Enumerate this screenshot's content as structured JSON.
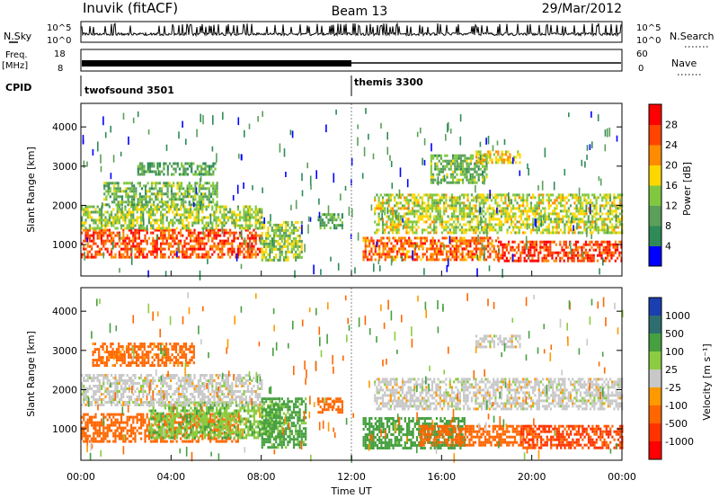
{
  "header": {
    "station": "Inuvik (fitACF)",
    "beam": "Beam 13",
    "date": "29/Mar/2012"
  },
  "status_panels": {
    "nsky_label": "N.Sky",
    "nsearch_label": "N.Search",
    "nsky_ticks": [
      "10^5",
      "10^0"
    ],
    "nsearch_ticks": [
      "10^5",
      "10^0"
    ],
    "freq_label_1": "Freq.",
    "freq_label_2": "[MHz]",
    "freq_ticks": [
      "18",
      "8"
    ],
    "nave_label": "Nave",
    "nave_ticks": [
      "60",
      "0"
    ],
    "cpid_label": "CPID",
    "cpid_segments": [
      {
        "name": "twofsound 3501",
        "start_hour": 0,
        "end_hour": 12
      },
      {
        "name": "themis 3300",
        "start_hour": 12,
        "end_hour": 24
      }
    ]
  },
  "colors": {
    "power_scale": [
      "#0000ff",
      "#2e8b57",
      "#5aa05a",
      "#80c840",
      "#ffd700",
      "#ff8c00",
      "#ff4500",
      "#ff0000"
    ],
    "velocity_scale": [
      "#1a3fb0",
      "#2e6e70",
      "#46a040",
      "#8ccc40",
      "#c8c8c8",
      "#ff9900",
      "#ff6600",
      "#ff3300",
      "#ff0000"
    ]
  },
  "chart_data": [
    {
      "type": "heatmap",
      "panel": "power",
      "xlabel": "",
      "ylabel": "Slant Range [km]",
      "yticks": [
        "1000",
        "2000",
        "3000",
        "4000"
      ],
      "ylim": [
        200,
        4600
      ],
      "xlim_hours": [
        0,
        24
      ],
      "colorbar_label": "Power [dB]",
      "colorbar_ticks": [
        "4",
        "8",
        "12",
        "16",
        "20",
        "24",
        "28"
      ],
      "colorbar_range": [
        0,
        32
      ],
      "echo_bands": [
        {
          "t0": 0,
          "t1": 8.0,
          "r0": 700,
          "r1": 1400,
          "level": 26
        },
        {
          "t0": 0,
          "t1": 8.0,
          "r0": 1400,
          "r1": 2000,
          "level": 14
        },
        {
          "t0": 1,
          "t1": 6.0,
          "r0": 2000,
          "r1": 2600,
          "level": 12
        },
        {
          "t0": 2.5,
          "t1": 6.0,
          "r0": 2800,
          "r1": 3100,
          "level": 10
        },
        {
          "t0": 8.0,
          "t1": 9.8,
          "r0": 600,
          "r1": 1600,
          "level": 14
        },
        {
          "t0": 10.5,
          "t1": 11.6,
          "r0": 1400,
          "r1": 1800,
          "level": 10
        },
        {
          "t0": 12.5,
          "t1": 18.5,
          "r0": 600,
          "r1": 1200,
          "level": 24
        },
        {
          "t0": 13.0,
          "t1": 24.0,
          "r0": 1300,
          "r1": 2300,
          "level": 16
        },
        {
          "t0": 18.5,
          "t1": 24.0,
          "r0": 600,
          "r1": 1100,
          "level": 27
        },
        {
          "t0": 15.5,
          "t1": 18.0,
          "r0": 2600,
          "r1": 3300,
          "level": 12
        },
        {
          "t0": 17.5,
          "t1": 19.5,
          "r0": 3100,
          "r1": 3400,
          "level": 18
        }
      ]
    },
    {
      "type": "heatmap",
      "panel": "velocity",
      "xlabel": "Time UT",
      "ylabel": "Slant Range [km]",
      "yticks": [
        "1000",
        "2000",
        "3000",
        "4000"
      ],
      "ylim": [
        200,
        4600
      ],
      "xlim_hours": [
        0,
        24
      ],
      "xticks": [
        "00:00",
        "04:00",
        "08:00",
        "12:00",
        "16:00",
        "20:00",
        "00:00"
      ],
      "colorbar_label": "Velocity [m s⁻¹]",
      "colorbar_ticks": [
        "1000",
        "500",
        "100",
        "25",
        "-25",
        "-100",
        "-500",
        "-1000"
      ],
      "echo_bands": [
        {
          "t0": 0,
          "t1": 7.0,
          "r0": 700,
          "r1": 1400,
          "level": -300
        },
        {
          "t0": 3.0,
          "t1": 9.0,
          "r0": 800,
          "r1": 1700,
          "level": 80
        },
        {
          "t0": 0,
          "t1": 8.0,
          "r0": 1600,
          "r1": 2400,
          "level": 0
        },
        {
          "t0": 0.5,
          "t1": 5.0,
          "r0": 2600,
          "r1": 3200,
          "level": -150
        },
        {
          "t0": 8.0,
          "t1": 10.0,
          "r0": 500,
          "r1": 1800,
          "level": 150
        },
        {
          "t0": 10.5,
          "t1": 11.6,
          "r0": 1400,
          "r1": 1800,
          "level": -200
        },
        {
          "t0": 12.5,
          "t1": 17.0,
          "r0": 500,
          "r1": 1300,
          "level": 200
        },
        {
          "t0": 13.0,
          "t1": 24.0,
          "r0": 1500,
          "r1": 2300,
          "level": 0
        },
        {
          "t0": 15.0,
          "t1": 20.0,
          "r0": 600,
          "r1": 1100,
          "level": -250
        },
        {
          "t0": 19.5,
          "t1": 24.0,
          "r0": 500,
          "r1": 1100,
          "level": -600
        },
        {
          "t0": 17.5,
          "t1": 19.5,
          "r0": 3100,
          "r1": 3400,
          "level": 0
        }
      ]
    }
  ]
}
